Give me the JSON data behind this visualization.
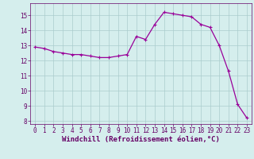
{
  "x": [
    0,
    1,
    2,
    3,
    4,
    5,
    6,
    7,
    8,
    9,
    10,
    11,
    12,
    13,
    14,
    15,
    16,
    17,
    18,
    19,
    20,
    21,
    22,
    23
  ],
  "y": [
    12.9,
    12.8,
    12.6,
    12.5,
    12.4,
    12.4,
    12.3,
    12.2,
    12.2,
    12.3,
    12.4,
    13.6,
    13.4,
    14.4,
    15.2,
    15.1,
    15.0,
    14.9,
    14.4,
    14.2,
    13.0,
    11.3,
    9.1,
    8.2
  ],
  "line_color": "#990099",
  "marker": "+",
  "markersize": 3,
  "linewidth": 0.9,
  "bg_color": "#d5eeed",
  "grid_color": "#aacccc",
  "xlabel": "Windchill (Refroidissement éolien,°C)",
  "xlim": [
    -0.5,
    23.5
  ],
  "ylim": [
    7.8,
    15.8
  ],
  "yticks": [
    8,
    9,
    10,
    11,
    12,
    13,
    14,
    15
  ],
  "xticks": [
    0,
    1,
    2,
    3,
    4,
    5,
    6,
    7,
    8,
    9,
    10,
    11,
    12,
    13,
    14,
    15,
    16,
    17,
    18,
    19,
    20,
    21,
    22,
    23
  ],
  "tick_label_fontsize": 5.5,
  "xlabel_fontsize": 6.5,
  "spine_color": "#660066"
}
